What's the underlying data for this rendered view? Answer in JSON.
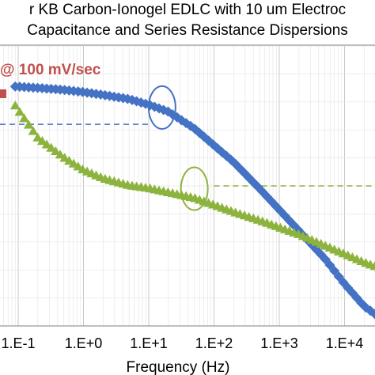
{
  "chart_data": {
    "type": "scatter",
    "title_lines": [
      "r KB Carbon-Ionogel EDLC with 10 um Electroc",
      "Capacitance and Series Resistance Dispersions"
    ],
    "xlabel": "Frequency (Hz)",
    "x_scale": "log",
    "xlim": [
      0.04,
      50000
    ],
    "ylim": [
      0,
      1
    ],
    "x_ticks": [
      {
        "value": 0.1,
        "label": "1.E-1"
      },
      {
        "value": 1,
        "label": "1.E+0"
      },
      {
        "value": 10,
        "label": "1.E+1"
      },
      {
        "value": 100,
        "label": "1.E+2"
      },
      {
        "value": 1000,
        "label": "1.E+3"
      },
      {
        "value": 10000,
        "label": "1.E+4"
      }
    ],
    "grid": true,
    "annotation": "@ 100 mV/sec",
    "series": [
      {
        "marker": "diamond",
        "color": "#4472c4",
        "points": [
          [
            0.09,
            0.855
          ],
          [
            0.2,
            0.85
          ],
          [
            0.5,
            0.843
          ],
          [
            1,
            0.835
          ],
          [
            2,
            0.825
          ],
          [
            5,
            0.81
          ],
          [
            10,
            0.79
          ],
          [
            20,
            0.765
          ],
          [
            50,
            0.705
          ],
          [
            100,
            0.645
          ],
          [
            200,
            0.585
          ],
          [
            500,
            0.49
          ],
          [
            1000,
            0.415
          ],
          [
            2000,
            0.34
          ],
          [
            5000,
            0.24
          ],
          [
            10000,
            0.15
          ],
          [
            20000,
            0.07
          ],
          [
            40000,
            0.02
          ]
        ]
      },
      {
        "marker": "triangle",
        "color": "#8db33f",
        "points": [
          [
            0.09,
            0.785
          ],
          [
            0.2,
            0.67
          ],
          [
            0.5,
            0.6
          ],
          [
            1,
            0.555
          ],
          [
            2,
            0.525
          ],
          [
            5,
            0.5
          ],
          [
            10,
            0.49
          ],
          [
            20,
            0.475
          ],
          [
            50,
            0.455
          ],
          [
            100,
            0.43
          ],
          [
            200,
            0.405
          ],
          [
            500,
            0.375
          ],
          [
            1000,
            0.35
          ],
          [
            2000,
            0.325
          ],
          [
            5000,
            0.285
          ],
          [
            10000,
            0.255
          ],
          [
            20000,
            0.225
          ],
          [
            40000,
            0.2
          ]
        ]
      }
    ],
    "reference_lines": [
      {
        "y": 0.72,
        "x_range": [
          0.04,
          10
        ],
        "color": "#4472c4",
        "style": "dashed"
      },
      {
        "y": 0.5,
        "x_range": [
          100,
          50000
        ],
        "color": "#8db33f",
        "style": "dashed"
      }
    ],
    "highlight_ellipses": [
      {
        "x": 16,
        "y": 0.78,
        "color": "#4472c4"
      },
      {
        "x": 50,
        "y": 0.49,
        "color": "#8db33f"
      }
    ],
    "legend_marker": {
      "color": "#c0504d"
    }
  }
}
